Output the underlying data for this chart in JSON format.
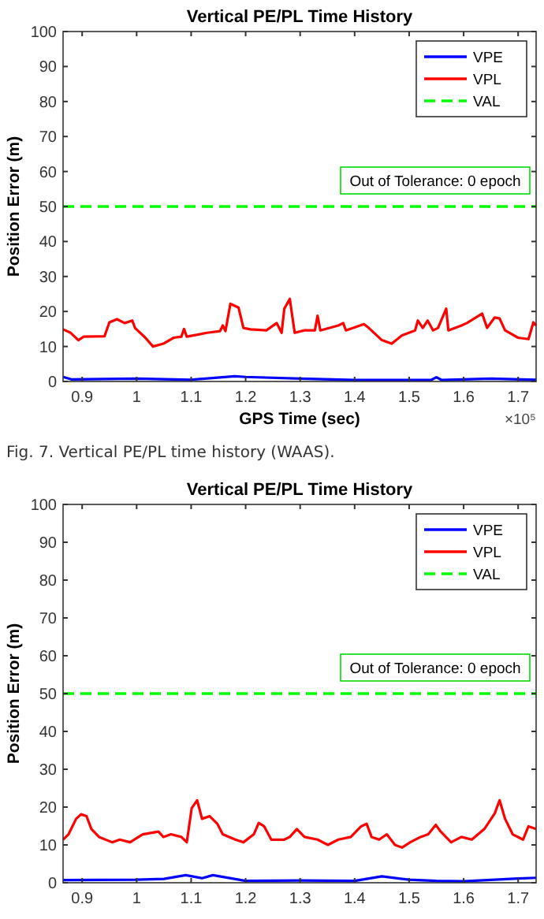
{
  "chart_data": [
    {
      "type": "line",
      "title": "Vertical PE/PL Time History",
      "xlabel": "GPS Time (sec)",
      "ylabel": "Position Error (m)",
      "xlim": [
        0.865,
        1.733
      ],
      "ylim": [
        0,
        100
      ],
      "xticks": [
        0.9,
        1,
        1.1,
        1.2,
        1.3,
        1.4,
        1.5,
        1.6,
        1.7
      ],
      "yticks": [
        0,
        10,
        20,
        30,
        40,
        50,
        60,
        70,
        80,
        90,
        100
      ],
      "grid": false,
      "legend": "top right",
      "line_style": "solid",
      "series": [
        {
          "name": "VPE",
          "color": "#0000ff",
          "x": [
            0.865,
            0.88,
            1.0,
            1.1,
            1.18,
            1.2,
            1.3,
            1.4,
            1.54,
            1.55,
            1.56,
            1.65,
            1.733
          ],
          "values": [
            1.3,
            0.6,
            0.8,
            0.5,
            1.5,
            1.3,
            0.8,
            0.4,
            0.4,
            1.2,
            0.4,
            0.8,
            0.5
          ]
        },
        {
          "name": "VPL",
          "color": "#ff0000",
          "x": [
            0.865,
            0.879,
            0.893,
            0.903,
            0.941,
            0.95,
            0.964,
            0.978,
            0.992,
            0.997,
            1.016,
            1.03,
            1.049,
            1.068,
            1.082,
            1.087,
            1.092,
            1.129,
            1.153,
            1.158,
            1.163,
            1.172,
            1.187,
            1.196,
            1.209,
            1.238,
            1.257,
            1.266,
            1.271,
            1.281,
            1.29,
            1.308,
            1.327,
            1.332,
            1.337,
            1.37,
            1.379,
            1.384,
            1.417,
            1.426,
            1.45,
            1.468,
            1.487,
            1.511,
            1.516,
            1.525,
            1.534,
            1.544,
            1.553,
            1.568,
            1.572,
            1.596,
            1.606,
            1.634,
            1.643,
            1.657,
            1.666,
            1.676,
            1.7,
            1.719,
            1.728,
            1.733
          ],
          "values": [
            14.9,
            13.9,
            11.8,
            12.8,
            12.9,
            16.9,
            17.8,
            16.7,
            17.4,
            15.3,
            12.5,
            10,
            10.8,
            12.5,
            12.8,
            15,
            12.8,
            13.9,
            14.4,
            16,
            14.4,
            22.2,
            21.1,
            15.3,
            14.9,
            14.6,
            16.7,
            13.9,
            20.8,
            23.6,
            13.9,
            14.6,
            14.6,
            18.8,
            14.6,
            16,
            16.7,
            14.6,
            16.4,
            15.3,
            11.8,
            10.8,
            13.2,
            14.6,
            17.4,
            15.3,
            17.4,
            14.6,
            15.3,
            20.8,
            14.6,
            16,
            16.7,
            19.4,
            15.3,
            18.3,
            18,
            14.6,
            12.5,
            12.1,
            16.9,
            16
          ]
        }
      ],
      "ref_lines": [
        {
          "axis": "y",
          "value": 50,
          "label": "VAL",
          "color": "#00ff00",
          "line_style": "dashed"
        }
      ],
      "annotations": [
        "Out of Tolerance: 0 epoch",
        "×10⁵",
        "Fig. 7. Vertical PE/PL time history (WAAS)."
      ]
    },
    {
      "type": "line",
      "title": "Vertical PE/PL Time History",
      "ylabel": "Position Error (m)",
      "xlim": [
        0.865,
        1.733
      ],
      "ylim": [
        0,
        100
      ],
      "xticks": [
        0.9,
        1,
        1.1,
        1.2,
        1.3,
        1.4,
        1.5,
        1.6,
        1.7
      ],
      "yticks": [
        0,
        10,
        20,
        30,
        40,
        50,
        60,
        70,
        80,
        90,
        100
      ],
      "grid": false,
      "legend": "top right",
      "line_style": "solid",
      "series": [
        {
          "name": "VPE",
          "color": "#0000ff",
          "x": [
            0.865,
            1.0,
            1.05,
            1.09,
            1.12,
            1.14,
            1.2,
            1.3,
            1.4,
            1.45,
            1.5,
            1.55,
            1.6,
            1.7,
            1.733
          ],
          "values": [
            0.7,
            0.8,
            1,
            2,
            1.2,
            2,
            0.5,
            0.6,
            0.5,
            1.7,
            0.8,
            0.5,
            0.4,
            1.1,
            1.3
          ]
        },
        {
          "name": "VPL",
          "color": "#ff0000",
          "x": [
            0.865,
            0.875,
            0.889,
            0.898,
            0.908,
            0.917,
            0.931,
            0.955,
            0.969,
            0.988,
            1.011,
            1.04,
            1.049,
            1.063,
            1.082,
            1.092,
            1.101,
            1.111,
            1.12,
            1.134,
            1.148,
            1.158,
            1.181,
            1.196,
            1.215,
            1.224,
            1.234,
            1.247,
            1.271,
            1.281,
            1.294,
            1.308,
            1.332,
            1.351,
            1.37,
            1.393,
            1.412,
            1.422,
            1.431,
            1.445,
            1.459,
            1.474,
            1.487,
            1.502,
            1.521,
            1.535,
            1.549,
            1.558,
            1.577,
            1.596,
            1.615,
            1.638,
            1.657,
            1.666,
            1.676,
            1.69,
            1.709,
            1.719,
            1.733
          ],
          "values": [
            11.4,
            12.8,
            16.9,
            18.1,
            17.6,
            14.2,
            12.1,
            10.7,
            11.4,
            10.7,
            12.8,
            13.5,
            12.1,
            12.8,
            12.1,
            10.7,
            19.7,
            21.8,
            16.9,
            17.6,
            15.6,
            12.8,
            11.4,
            10.7,
            12.8,
            15.8,
            14.9,
            11.4,
            11.4,
            12.1,
            14.2,
            12.1,
            11.4,
            10,
            11.4,
            12.1,
            14.9,
            15.6,
            12.1,
            11.4,
            12.8,
            10,
            9.3,
            10.7,
            12.1,
            12.8,
            15.3,
            13.5,
            10.7,
            12.1,
            11.4,
            14.2,
            18.3,
            21.8,
            16.9,
            12.8,
            11.4,
            14.9,
            14.2
          ]
        }
      ],
      "ref_lines": [
        {
          "axis": "y",
          "value": 50,
          "label": "VAL",
          "color": "#00ff00",
          "line_style": "dashed"
        }
      ],
      "annotations": [
        "Out of Tolerance: 0 epoch"
      ]
    }
  ]
}
